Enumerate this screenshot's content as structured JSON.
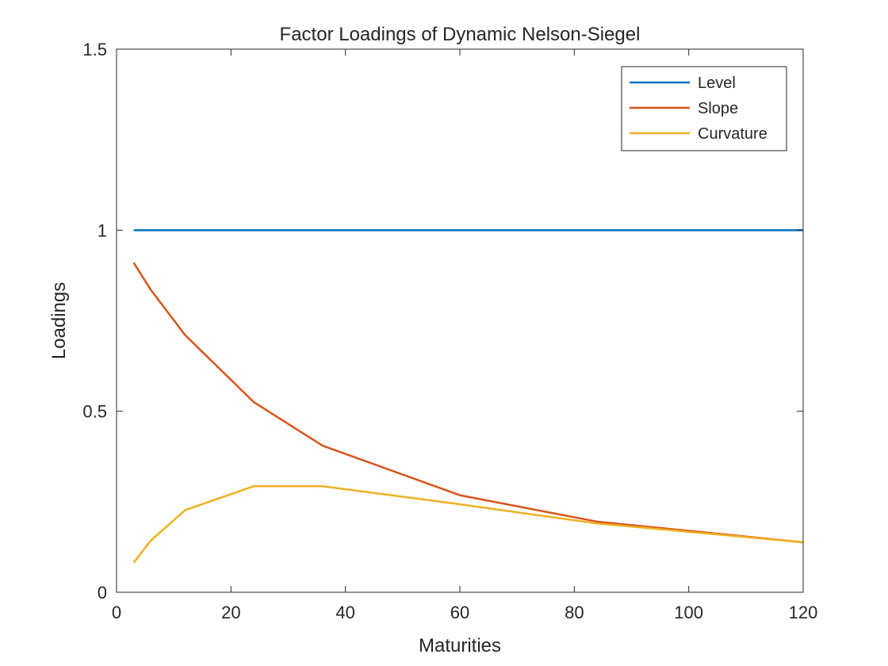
{
  "chart_data": {
    "type": "line",
    "title": "Factor Loadings of Dynamic Nelson-Siegel",
    "xlabel": "Maturities",
    "ylabel": "Loadings",
    "xlim": [
      0,
      120
    ],
    "ylim": [
      0,
      1.5
    ],
    "xticks": [
      0,
      20,
      40,
      60,
      80,
      100,
      120
    ],
    "xtick_labels": [
      "0",
      "20",
      "40",
      "60",
      "80",
      "100",
      "120"
    ],
    "yticks": [
      0,
      0.5,
      1,
      1.5
    ],
    "ytick_labels": [
      "0",
      "0.5",
      "1",
      "1.5"
    ],
    "grid": false,
    "legend_position": "top-right",
    "x": [
      3,
      6,
      12,
      24,
      36,
      60,
      84,
      120
    ],
    "series": [
      {
        "name": "Level",
        "color": "#0072BD",
        "values": [
          1,
          1,
          1,
          1,
          1,
          1,
          1,
          1
        ]
      },
      {
        "name": "Slope",
        "color": "#D95319",
        "values": [
          0.91,
          0.835,
          0.71,
          0.525,
          0.405,
          0.268,
          0.195,
          0.138
        ]
      },
      {
        "name": "Curvature",
        "color": "#EDB120",
        "values": [
          0.082,
          0.143,
          0.227,
          0.293,
          0.293,
          0.243,
          0.19,
          0.138
        ]
      }
    ]
  }
}
